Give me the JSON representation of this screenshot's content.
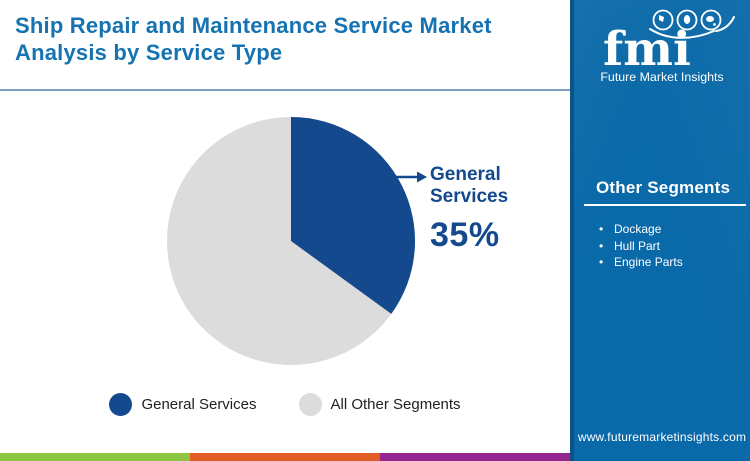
{
  "header": {
    "title_line1": "Ship Repair and Maintenance Service Market",
    "title_line2": "Analysis by Service Type"
  },
  "chart_data": {
    "type": "pie",
    "title": "Ship Repair and Maintenance Service Market Analysis by Service Type",
    "slices": [
      {
        "label": "General Services",
        "value": 35,
        "color": "#15498e"
      },
      {
        "label": "All Other Segments",
        "value": 65,
        "color": "#dcdcdd"
      }
    ],
    "start_angle_deg": 0,
    "direction": "clockwise",
    "annotation": {
      "label": "General Services",
      "value_label": "35%"
    },
    "legend_position": "bottom"
  },
  "sidebar": {
    "logo": {
      "brand": "fmi",
      "subtitle": "Future Market Insights"
    },
    "other_segments": {
      "heading": "Other Segments",
      "items": [
        "Dockage",
        "Hull Part",
        "Engine Parts"
      ]
    },
    "website": "www.futuremarketinsights.com",
    "background_color": "#0a69a8"
  },
  "footer": {
    "stripe_colors": [
      "#8cc540",
      "#e55d26",
      "#93278f"
    ]
  },
  "theme": {
    "title_color": "#1673b1",
    "divider_color": "#7d9fc0",
    "callout_color": "#15498e",
    "legend_text_color": "#212121"
  }
}
